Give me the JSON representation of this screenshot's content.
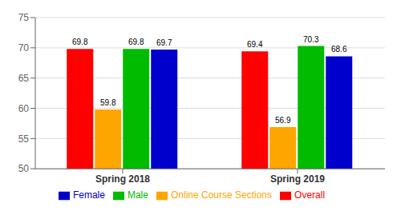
{
  "chart_data": {
    "type": "bar",
    "categories": [
      "Spring 2018",
      "Spring 2019"
    ],
    "series": [
      {
        "name": "Overall",
        "color": "#ff0000",
        "values": [
          69.8,
          69.4
        ]
      },
      {
        "name": "Online Course Sections",
        "color": "#ffa500",
        "values": [
          59.8,
          56.9
        ]
      },
      {
        "name": "Male",
        "color": "#00bb00",
        "values": [
          69.8,
          70.3
        ]
      },
      {
        "name": "Female",
        "color": "#0000cc",
        "values": [
          69.7,
          68.6
        ]
      }
    ],
    "ylim": [
      50,
      75
    ],
    "yticks": [
      50,
      55,
      60,
      65,
      70,
      75
    ],
    "grid": true,
    "legend": "bottom",
    "data_labels": true
  }
}
